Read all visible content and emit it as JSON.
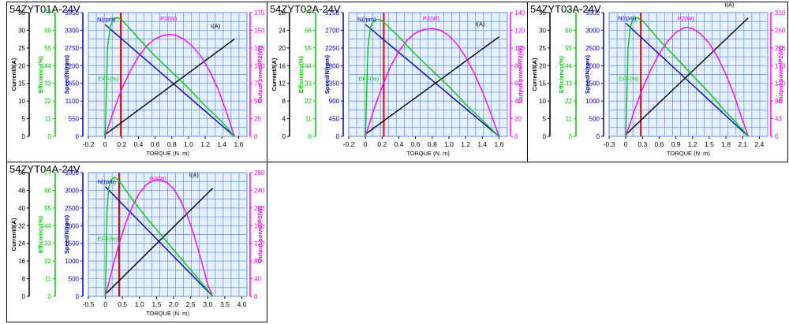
{
  "colors": {
    "current": "#000000",
    "efficiency": "#00cc00",
    "speed": "#0000cc",
    "power": "#ff00ff",
    "rated_marker": "#e00000",
    "grid_fill": "#e6f0ff",
    "grid_line": "#5b8fe8"
  },
  "chart_data": [
    {
      "type": "line",
      "title": "54ZYT01A-24V",
      "xlabel": "TORQUE (N. m)",
      "x_ticks": [
        "-0.2",
        "0",
        "0.2",
        "0.4",
        "0.6",
        "0.8",
        "1.0",
        "1.2",
        "1.4",
        "1.6"
      ],
      "xlim": [
        -0.2,
        1.7
      ],
      "rated_torque": 0.19,
      "axes": {
        "current": {
          "label": "Current/I(A)",
          "ticks": [
            "0",
            "5",
            "10",
            "15",
            "20",
            "25",
            "30",
            "35"
          ],
          "max": 35
        },
        "efficiency": {
          "label": "Efficiency(%)",
          "ticks": [
            "0",
            "11",
            "22",
            "33",
            "44",
            "55",
            "66",
            "77"
          ],
          "max": 77
        },
        "speed": {
          "label": "Speed/N(rpm)",
          "ticks": [
            "0",
            "550",
            "1100",
            "1650",
            "2200",
            "2750",
            "3300",
            "3850"
          ],
          "max": 3850
        },
        "power": {
          "label": "Output power/P2(W)",
          "ticks": [
            "0",
            "25",
            "50",
            "75",
            "100",
            "125",
            "150",
            "175"
          ],
          "max": 175
        }
      },
      "series": [
        {
          "name": "N(rpm)",
          "axis": "speed",
          "x": [
            0,
            1.55
          ],
          "y": [
            3480,
            0
          ]
        },
        {
          "name": "I(A)",
          "axis": "current",
          "x": [
            0,
            1.55
          ],
          "y": [
            0.5,
            27.5
          ]
        },
        {
          "name": "P2(W)",
          "axis": "power",
          "x": [
            0,
            0.1,
            0.2,
            0.3,
            0.4,
            0.5,
            0.6,
            0.7,
            0.775,
            0.85,
            0.95,
            1.05,
            1.15,
            1.25,
            1.35,
            1.45,
            1.55
          ],
          "y": [
            0,
            35,
            67,
            92,
            113,
            128,
            138,
            143,
            144,
            143,
            137,
            127,
            113,
            93,
            68,
            36,
            0
          ]
        },
        {
          "name": "EFF(%)",
          "axis": "efficiency",
          "x": [
            0,
            0.03,
            0.06,
            0.1,
            0.15,
            0.2,
            0.3,
            0.4,
            0.6,
            0.8,
            1.0,
            1.2,
            1.4,
            1.55
          ],
          "y": [
            0,
            55,
            68,
            73,
            74,
            72.5,
            67,
            61,
            50,
            40,
            30,
            19,
            9,
            0
          ]
        }
      ],
      "labels": {
        "speed": "N(rpm)",
        "current": "I(A)",
        "power": "P2(W)",
        "efficiency": "EFF(%)"
      }
    },
    {
      "type": "line",
      "title": "54ZYT02A-24V",
      "xlabel": "TORQUE (N. m)",
      "x_ticks": [
        "-0.2",
        "0",
        "0.2",
        "0.4",
        "0.6",
        "0.8",
        "1.0",
        "1.2",
        "1.4",
        "1.6"
      ],
      "xlim": [
        -0.2,
        1.7
      ],
      "rated_torque": 0.22,
      "axes": {
        "current": {
          "label": "Current/I(A)",
          "ticks": [
            "0",
            "4",
            "8",
            "12",
            "16",
            "20",
            "24",
            "28"
          ],
          "max": 28
        },
        "efficiency": {
          "label": "Efficiency(%)",
          "ticks": [
            "0",
            "11",
            "22",
            "33",
            "44",
            "55",
            "66",
            "77"
          ],
          "max": 77
        },
        "speed": {
          "label": "Speed/N(rpm)",
          "ticks": [
            "0",
            "450",
            "900",
            "1350",
            "1800",
            "2250",
            "2700",
            "3150"
          ],
          "max": 3150
        },
        "power": {
          "label": "Output power/P2(W)",
          "ticks": [
            "0",
            "20",
            "40",
            "60",
            "80",
            "100",
            "120",
            "140"
          ],
          "max": 140
        }
      },
      "series": [
        {
          "name": "N(rpm)",
          "axis": "speed",
          "x": [
            0,
            1.6
          ],
          "y": [
            2850,
            0
          ]
        },
        {
          "name": "I(A)",
          "axis": "current",
          "x": [
            0,
            1.6
          ],
          "y": [
            0.5,
            22.5
          ]
        },
        {
          "name": "P2(W)",
          "axis": "power",
          "x": [
            0,
            0.1,
            0.2,
            0.3,
            0.4,
            0.5,
            0.6,
            0.7,
            0.8,
            0.9,
            1.0,
            1.1,
            1.2,
            1.3,
            1.4,
            1.5,
            1.6
          ],
          "y": [
            0,
            30,
            56,
            79,
            96,
            109,
            117,
            121,
            122,
            120,
            114,
            104,
            90,
            72,
            51,
            27,
            0
          ]
        },
        {
          "name": "EFF(%)",
          "axis": "efficiency",
          "x": [
            0,
            0.03,
            0.06,
            0.1,
            0.15,
            0.2,
            0.3,
            0.4,
            0.6,
            0.8,
            1.0,
            1.2,
            1.4,
            1.6
          ],
          "y": [
            0,
            55,
            68,
            72,
            73,
            72,
            67,
            62,
            51,
            41,
            31,
            20,
            10,
            0
          ]
        }
      ],
      "labels": {
        "speed": "N(rpm)",
        "current": "I(A)",
        "power": "P2(W)",
        "efficiency": "EFF(%)"
      }
    },
    {
      "type": "line",
      "title": "54ZYT03A-24V",
      "xlabel": "TORQUE (N. m)",
      "x_ticks": [
        "-0.3",
        "0",
        "0.3",
        "0.6",
        "0.9",
        "1.2",
        "1.5",
        "1.8",
        "2.1",
        "2.4"
      ],
      "xlim": [
        -0.3,
        2.55
      ],
      "rated_torque": 0.27,
      "axes": {
        "current": {
          "label": "Current/I(A)",
          "ticks": [
            "0",
            "5",
            "10",
            "15",
            "20",
            "25",
            "30",
            "35"
          ],
          "max": 35
        },
        "efficiency": {
          "label": "Efficiency(%)",
          "ticks": [
            "0",
            "11",
            "22",
            "33",
            "44",
            "55",
            "66",
            "77"
          ],
          "max": 77
        },
        "speed": {
          "label": "Speed/N(rpm)",
          "ticks": [
            "0",
            "500",
            "1000",
            "1500",
            "2000",
            "2500",
            "3000",
            "3500"
          ],
          "max": 3500
        },
        "power": {
          "label": "Output power/P2(W)",
          "ticks": [
            "0",
            "43",
            "86",
            "130",
            "173",
            "216",
            "260",
            "310"
          ],
          "max": 310
        }
      },
      "series": [
        {
          "name": "N(rpm)",
          "axis": "speed",
          "x": [
            0,
            2.2
          ],
          "y": [
            3200,
            0
          ]
        },
        {
          "name": "I(A)",
          "axis": "current",
          "x": [
            0,
            2.2
          ],
          "y": [
            0.5,
            33.5
          ]
        },
        {
          "name": "P2(W)",
          "axis": "power",
          "x": [
            0,
            0.15,
            0.3,
            0.45,
            0.6,
            0.75,
            0.9,
            1.05,
            1.1,
            1.2,
            1.35,
            1.5,
            1.65,
            1.8,
            1.95,
            2.1,
            2.2
          ],
          "y": [
            0,
            63,
            119,
            167,
            207,
            238,
            260,
            272,
            273,
            270,
            256,
            233,
            199,
            155,
            102,
            39,
            0
          ]
        },
        {
          "name": "EFF(%)",
          "axis": "efficiency",
          "x": [
            0,
            0.04,
            0.08,
            0.13,
            0.2,
            0.3,
            0.45,
            0.6,
            0.9,
            1.2,
            1.5,
            1.8,
            2.0,
            2.2
          ],
          "y": [
            0,
            55,
            68,
            73,
            74,
            72,
            66,
            60,
            49,
            38,
            27,
            15,
            8,
            0
          ]
        }
      ],
      "labels": {
        "speed": "N(rpm)",
        "current": "I(A)",
        "power": "P2(W)",
        "efficiency": "EFF(%)"
      }
    },
    {
      "type": "line",
      "title": "54ZYT04A-24V",
      "xlabel": "TORQUE (N. m)",
      "x_ticks": [
        "-0.5",
        "0",
        "0.5",
        "1.0",
        "1.5",
        "2.0",
        "2.5",
        "3.0",
        "3.5",
        "4.0"
      ],
      "xlim": [
        -0.5,
        4.15
      ],
      "rated_torque": 0.4,
      "axes": {
        "current": {
          "label": "Current/I(A)",
          "ticks": [
            "0",
            "8",
            "16",
            "24",
            "32",
            "40",
            "48",
            "56"
          ],
          "max": 56
        },
        "efficiency": {
          "label": "Efficiency(%)",
          "ticks": [
            "0",
            "11",
            "22",
            "33",
            "44",
            "55",
            "66",
            "77"
          ],
          "max": 77
        },
        "speed": {
          "label": "Speed/N(rpm)",
          "ticks": [
            "0",
            "500",
            "1000",
            "1500",
            "2000",
            "2500",
            "3000",
            "3500"
          ],
          "max": 3500
        },
        "power": {
          "label": "Output power/P2(W)",
          "ticks": [
            "0",
            "40",
            "80",
            "120",
            "160",
            "200",
            "240",
            "280"
          ],
          "max": 280
        }
      },
      "series": [
        {
          "name": "N(rpm)",
          "axis": "speed",
          "x": [
            0,
            3.15
          ],
          "y": [
            3100,
            0
          ]
        },
        {
          "name": "I(A)",
          "axis": "current",
          "x": [
            0,
            3.15
          ],
          "y": [
            1,
            49
          ]
        },
        {
          "name": "P2(W)",
          "axis": "power",
          "x": [
            0,
            0.2,
            0.4,
            0.6,
            0.8,
            1.0,
            1.2,
            1.4,
            1.575,
            1.8,
            2.0,
            2.2,
            2.4,
            2.6,
            2.8,
            3.0,
            3.15
          ],
          "y": [
            0,
            63,
            119,
            167,
            205,
            234,
            253,
            262,
            264,
            258,
            243,
            218,
            183,
            138,
            85,
            27,
            0
          ]
        },
        {
          "name": "EFF(%)",
          "axis": "efficiency",
          "x": [
            0,
            0.05,
            0.1,
            0.18,
            0.28,
            0.4,
            0.6,
            0.8,
            1.2,
            1.6,
            2.0,
            2.4,
            2.8,
            3.15
          ],
          "y": [
            0,
            55,
            68,
            73,
            74,
            72,
            66,
            60,
            49,
            39,
            29,
            19,
            9,
            0
          ]
        }
      ],
      "labels": {
        "speed": "N(rpm)",
        "current": "I(A)",
        "power": "P2(W)",
        "efficiency": "EFF(%)"
      }
    }
  ]
}
